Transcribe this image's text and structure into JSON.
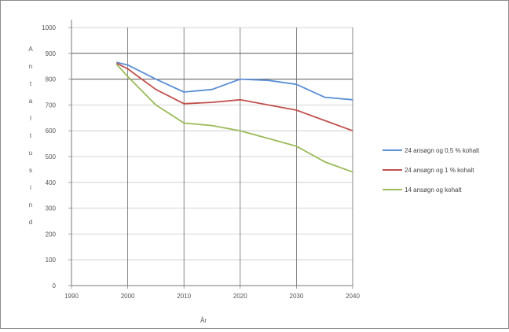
{
  "chart_data": {
    "type": "line",
    "title": "",
    "xlabel": "År",
    "ylabel": "Antal tusind",
    "x": [
      1998,
      2000,
      2005,
      2010,
      2015,
      2020,
      2025,
      2030,
      2035,
      2040
    ],
    "xlim": [
      1990,
      2040
    ],
    "ylim": [
      0,
      900
    ],
    "xticks": [
      "1990",
      "2000",
      "2010",
      "2020",
      "2030",
      "2040"
    ],
    "ytick_values": [
      0,
      100,
      200,
      300,
      400,
      500,
      600,
      700,
      800,
      900,
      1000
    ],
    "ytick_labels": [
      "0",
      "100",
      "200",
      "300",
      "400",
      "500",
      "600",
      "700",
      "800",
      "900",
      "1000"
    ],
    "grid": "horizontal and vertical",
    "legend_position": "right",
    "series": [
      {
        "name": "24 ansøgn og 0,5 % kohalt",
        "color": "#5b8fd6",
        "values": [
          865,
          855,
          800,
          750,
          760,
          800,
          795,
          780,
          730,
          720
        ]
      },
      {
        "name": "24 ansøgn og 1 % kohalt",
        "color": "#c0504d",
        "values": [
          862,
          840,
          760,
          705,
          710,
          720,
          700,
          680,
          640,
          600
        ]
      },
      {
        "name": "14 ansøgn og kohalt",
        "color": "#9bbb59",
        "values": [
          858,
          810,
          700,
          630,
          620,
          600,
          570,
          540,
          480,
          440
        ]
      }
    ]
  }
}
